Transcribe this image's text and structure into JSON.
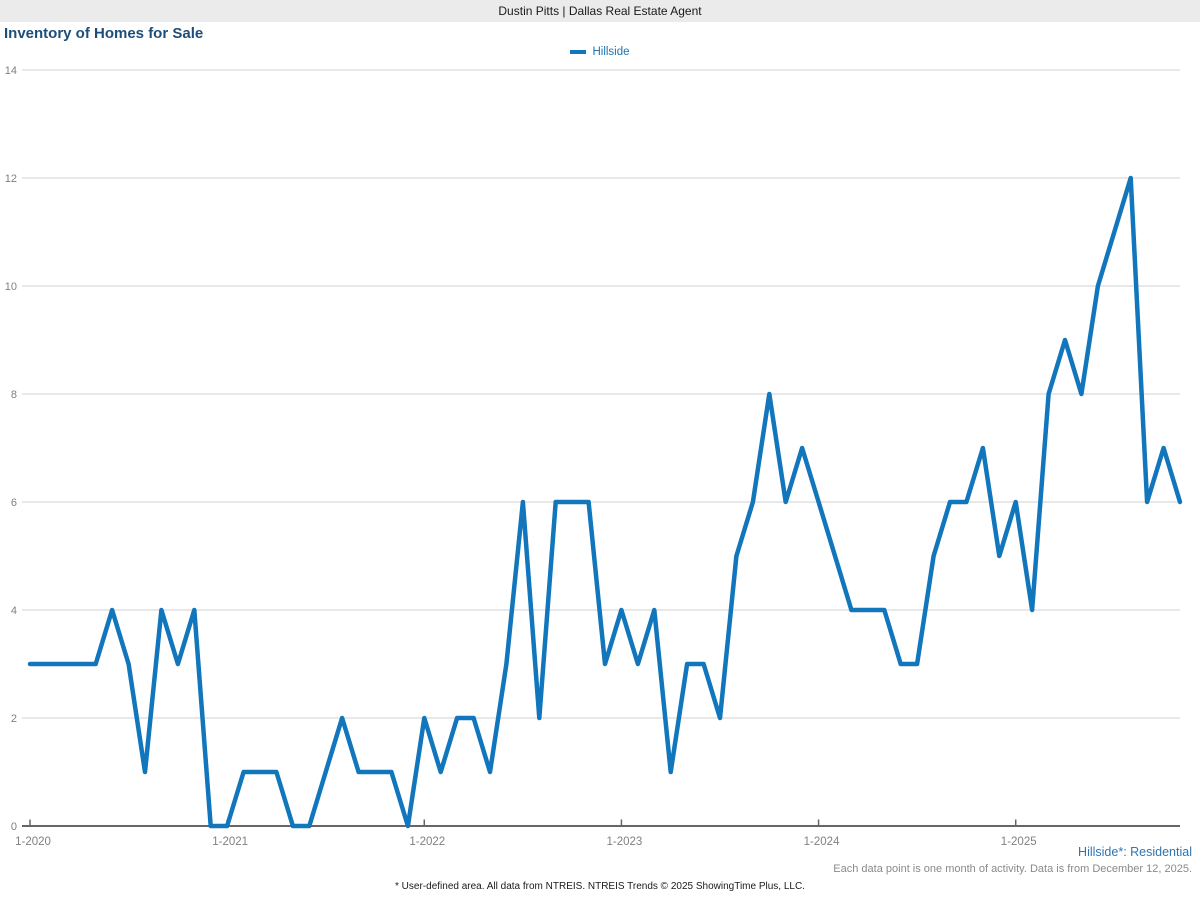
{
  "header": {
    "title": "Dustin Pitts | Dallas Real Estate Agent"
  },
  "chart": {
    "title": "Inventory of Homes for Sale",
    "legend": {
      "label": "Hillside"
    }
  },
  "chart_data": {
    "type": "line",
    "title": "Inventory of Homes for Sale",
    "x_tick_labels": [
      "1-2020",
      "1-2021",
      "1-2022",
      "1-2023",
      "1-2024",
      "1-2025"
    ],
    "x_tick_every": 12,
    "x_unit": "month",
    "x_range_note": "monthly points from 1-2020 through 11-2025",
    "yticks": [
      0,
      2,
      4,
      6,
      8,
      10,
      12,
      14
    ],
    "ylim": [
      0,
      14
    ],
    "grid": "horizontal",
    "legend_position": "top-center",
    "series": [
      {
        "name": "Hillside",
        "color": "#1276bc",
        "values": [
          3,
          3,
          3,
          3,
          3,
          4,
          3,
          1,
          4,
          3,
          4,
          0,
          0,
          1,
          1,
          1,
          0,
          0,
          1,
          2,
          1,
          1,
          1,
          0,
          2,
          1,
          2,
          2,
          1,
          3,
          6,
          2,
          6,
          6,
          6,
          3,
          4,
          3,
          4,
          1,
          3,
          3,
          2,
          5,
          6,
          8,
          6,
          7,
          6,
          5,
          4,
          4,
          4,
          3,
          3,
          5,
          6,
          6,
          7,
          5,
          6,
          4,
          8,
          9,
          8,
          10,
          11,
          12,
          6,
          7,
          6
        ]
      }
    ]
  },
  "footnotes": {
    "series_note": "Hillside*: Residential",
    "data_note": "Each data point is one month of activity. Data is from December 12, 2025.",
    "disclaimer": "* User-defined area. All data from NTREIS. NTREIS Trends © 2025 ShowingTime Plus, LLC."
  },
  "colors": {
    "line_blue": "#1276bc",
    "title_navy": "#1d4e79",
    "legend_text_blue": "#1e73b1",
    "series_note_blue": "#2e76b3",
    "axis_text_gray": "#808080",
    "gridline_gray": "#d0d0d0",
    "axis_line_gray": "#666666",
    "topbar_gray": "#ebebeb"
  }
}
